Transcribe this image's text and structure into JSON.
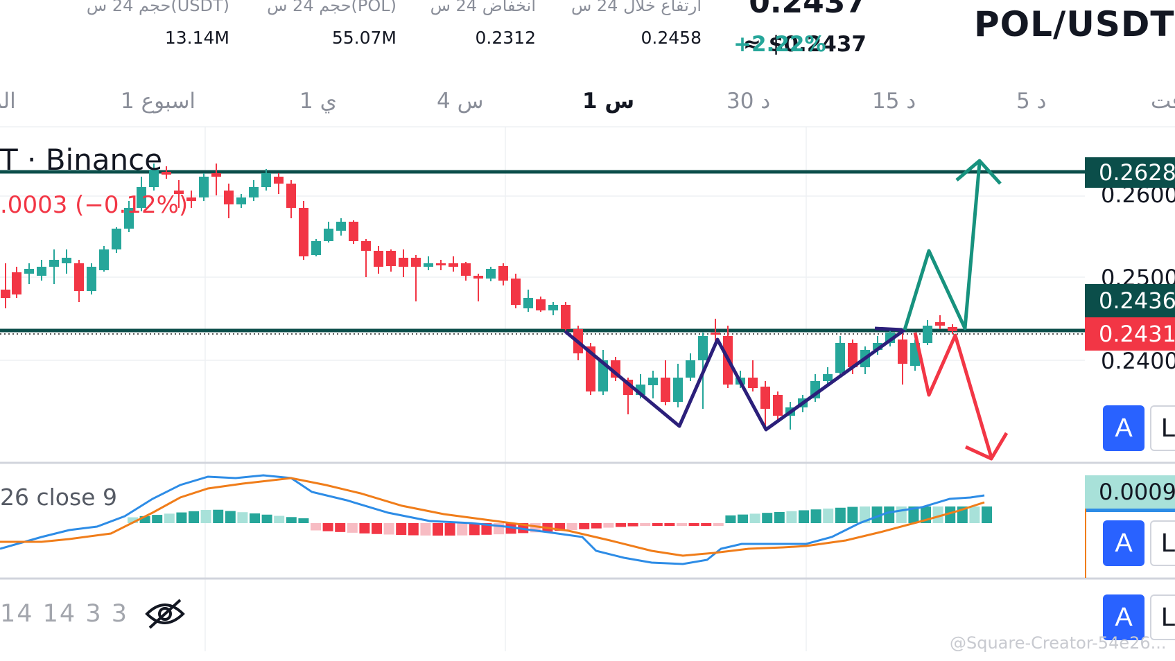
{
  "header": {
    "pair": "POL/USDT",
    "last_price": "0.2437",
    "usd_price": "≈ $0.2437",
    "change_pct": "+2.22%",
    "stats": [
      {
        "label": "ارتفاع خلال 24 س",
        "value": "0.2458"
      },
      {
        "label": "انخفاض 24 س",
        "value": "0.2312"
      },
      {
        "label": "حجم 24 س(POL)",
        "value": "55.07M"
      },
      {
        "label": "حجم 24 س(USDT)",
        "value": "13.14M"
      }
    ]
  },
  "time_tabs": [
    {
      "label": "الوقت"
    },
    {
      "label": "5 د"
    },
    {
      "label": "15 د"
    },
    {
      "label": "30 د"
    },
    {
      "label": "1 س",
      "active": true
    },
    {
      "label": "4 س"
    },
    {
      "label": "1 ي"
    },
    {
      "label": "1 اسبوع"
    },
    {
      "label": "الم"
    }
  ],
  "chart": {
    "symbol_title": "T · Binance",
    "symbol_change": ".0003 (−0.12%)",
    "macd_label": "26 close 9",
    "volume_label": "14 14 3 3",
    "hide_icon": "eye-slash-icon",
    "price_badges": [
      {
        "value": "0.2628",
        "bg": "#0b4e4a",
        "fg": "#ffffff"
      },
      {
        "value": "0.2436",
        "bg": "#0b4e4a",
        "fg": "#ffffff"
      },
      {
        "value": "0.2431",
        "bg": "#f23645",
        "fg": "#ffffff"
      },
      {
        "value": "0.0009",
        "bg": "#a8e1d9",
        "fg": "#131722"
      }
    ],
    "price_scale": [
      "0.2600",
      "0.2500",
      "0.2400"
    ],
    "side_buttons": [
      {
        "a": "A",
        "l": "L"
      },
      {
        "a": "A",
        "l": "L"
      },
      {
        "a": "A",
        "l": "L"
      }
    ],
    "watermark": "@Square-Creator-54e26..."
  },
  "colors": {
    "up": "#26a69a",
    "down": "#f23645",
    "level_line": "#0b4e4a",
    "pattern": "#2b1f7a",
    "macd": "#2d8ce6",
    "signal": "#f07d1a"
  }
}
